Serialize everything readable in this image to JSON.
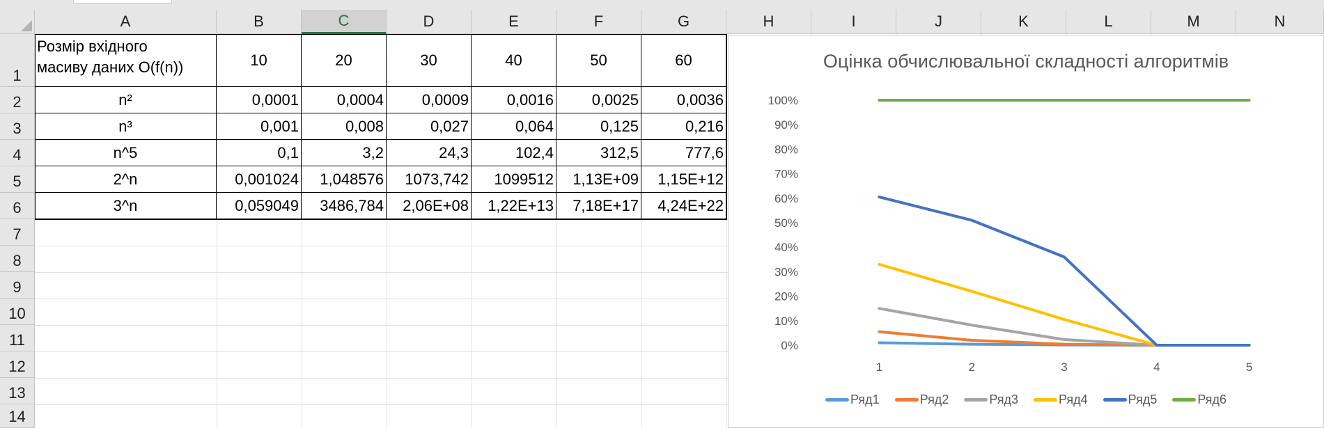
{
  "column_headers": [
    "A",
    "B",
    "C",
    "D",
    "E",
    "F",
    "G",
    "H",
    "I",
    "J",
    "K",
    "L",
    "M",
    "N"
  ],
  "selected_column": "C",
  "row_headers": [
    "1",
    "2",
    "3",
    "4",
    "5",
    "6",
    "7",
    "8",
    "9",
    "10",
    "11",
    "12",
    "13",
    "14"
  ],
  "table": {
    "a1_line1": "Розмір вхідного",
    "a1_line2": "масиву даних O(f(n))",
    "sizes": [
      "10",
      "20",
      "30",
      "40",
      "50",
      "60"
    ],
    "rows": [
      {
        "label": "n²",
        "values": [
          "0,0001",
          "0,0004",
          "0,0009",
          "0,0016",
          "0,0025",
          "0,0036"
        ]
      },
      {
        "label": "n³",
        "values": [
          "0,001",
          "0,008",
          "0,027",
          "0,064",
          "0,125",
          "0,216"
        ]
      },
      {
        "label": "n^5",
        "values": [
          "0,1",
          "3,2",
          "24,3",
          "102,4",
          "312,5",
          "777,6"
        ]
      },
      {
        "label": "2^n",
        "values": [
          "0,001024",
          "1,048576",
          "1073,742",
          "1099512",
          "1,13E+09",
          "1,15E+12"
        ]
      },
      {
        "label": "3^n",
        "values": [
          "0,059049",
          "3486,784",
          "2,06E+08",
          "1,22E+13",
          "7,18E+17",
          "4,24E+22"
        ]
      }
    ]
  },
  "chart_data": {
    "type": "line",
    "title": "Оцінка обчислювальної складності алгоритмів",
    "x": [
      1,
      2,
      3,
      4,
      5
    ],
    "ylim": [
      0,
      100
    ],
    "y_ticks": [
      "0%",
      "10%",
      "20%",
      "30%",
      "40%",
      "50%",
      "60%",
      "70%",
      "80%",
      "90%",
      "100%"
    ],
    "x_ticks": [
      "1",
      "2",
      "3",
      "4",
      "5"
    ],
    "grid": false,
    "legend_position": "bottom",
    "series": [
      {
        "name": "Ряд1",
        "color": "#5B9BD5",
        "values": [
          1,
          0.4,
          0.1,
          0,
          0
        ]
      },
      {
        "name": "Ряд2",
        "color": "#ED7D31",
        "values": [
          5.5,
          2,
          0.4,
          0,
          0
        ]
      },
      {
        "name": "Ряд3",
        "color": "#A5A5A5",
        "values": [
          15,
          8.2,
          2.3,
          0,
          0
        ]
      },
      {
        "name": "Ряд4",
        "color": "#FFC000",
        "values": [
          33,
          22,
          10.5,
          0,
          0
        ]
      },
      {
        "name": "Ряд5",
        "color": "#4472C4",
        "values": [
          60.5,
          51,
          36,
          0,
          0
        ]
      },
      {
        "name": "Ряд6",
        "color": "#70AD47",
        "values": [
          100,
          100,
          100,
          100,
          100
        ]
      }
    ]
  }
}
